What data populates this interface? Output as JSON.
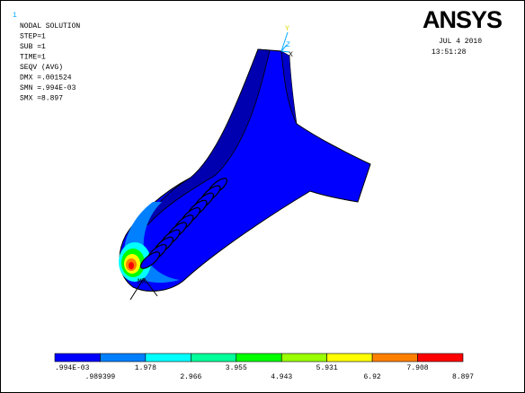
{
  "window_number": "1",
  "info": [
    "NODAL SOLUTION",
    "STEP=1",
    "SUB =1",
    "TIME=1",
    "SEQV     (AVG)",
    "DMX =.001524",
    "SMN =.994E-03",
    "SMX =8.897"
  ],
  "logo": "ANSYS",
  "date": "JUL  4 2010",
  "time": "13:51:28",
  "triad": {
    "y": "Y",
    "z": "Z",
    "x": "X"
  },
  "marker": "MX",
  "legend": {
    "colors": [
      "#0000ff",
      "#0080ff",
      "#00ffff",
      "#00ff9a",
      "#00ff00",
      "#9aff00",
      "#ffff00",
      "#ff8000",
      "#ff0000"
    ],
    "labels": [
      ".994E-03",
      ".989399",
      "1.978",
      "2.966",
      "3.955",
      "4.943",
      "5.931",
      "6.92",
      "7.908",
      "8.897"
    ]
  }
}
